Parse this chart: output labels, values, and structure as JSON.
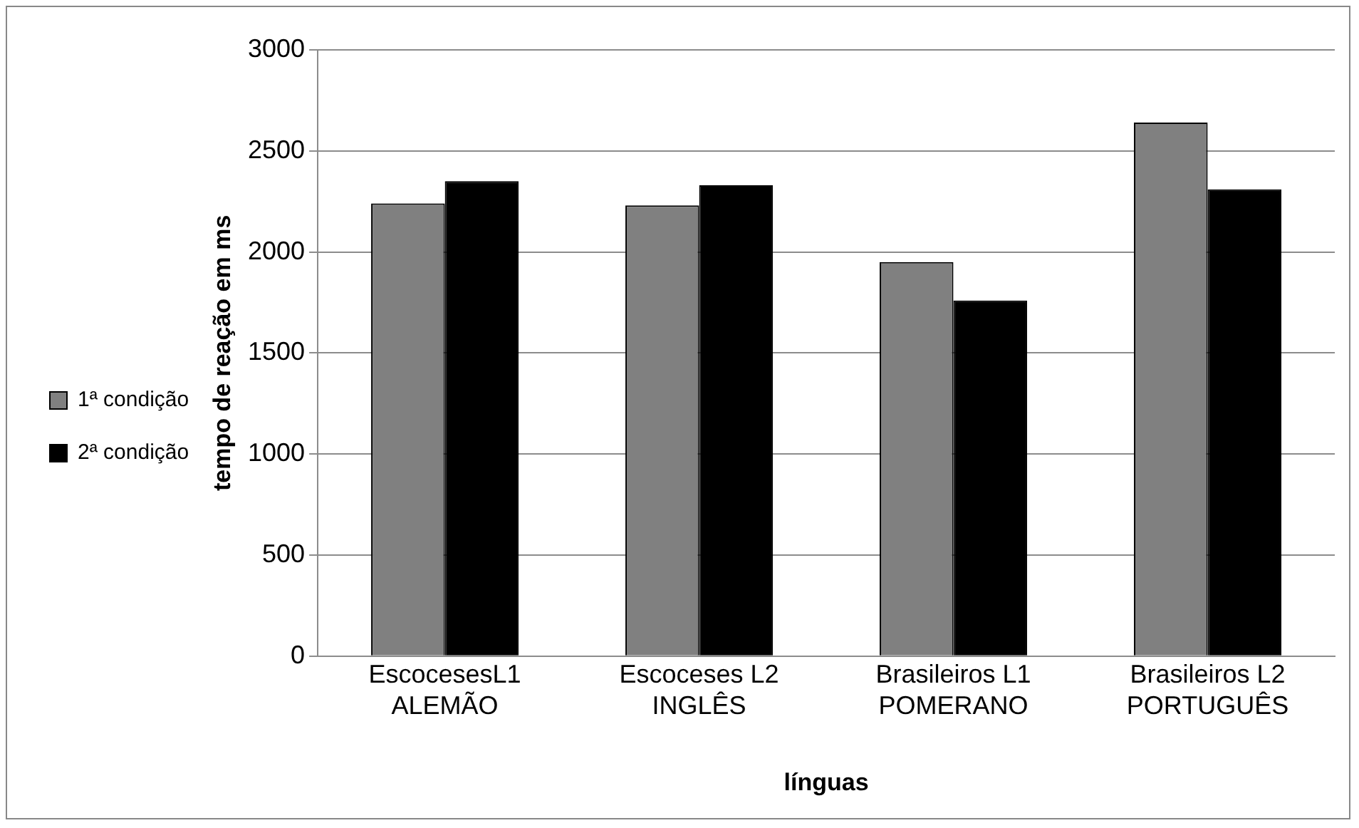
{
  "chart_data": {
    "type": "bar",
    "xlabel": "línguas",
    "ylabel": "tempo de reação em ms",
    "categories": [
      "EscocesesL1\nALEMÃO",
      "Escoceses L2\nINGLÊS",
      "Brasileiros L1\nPOMERANO",
      "Brasileiros L2\nPORTUGUÊS"
    ],
    "series": [
      {
        "name": "1ª condição",
        "color": "#808080",
        "values": [
          2240,
          2230,
          1950,
          2640
        ]
      },
      {
        "name": "2ª condição",
        "color": "#000000",
        "values": [
          2350,
          2330,
          1760,
          2310
        ]
      }
    ],
    "ylim": [
      0,
      3000
    ],
    "yticks": [
      0,
      500,
      1000,
      1500,
      2000,
      2500,
      3000
    ],
    "grid": "y",
    "legend": "left"
  }
}
